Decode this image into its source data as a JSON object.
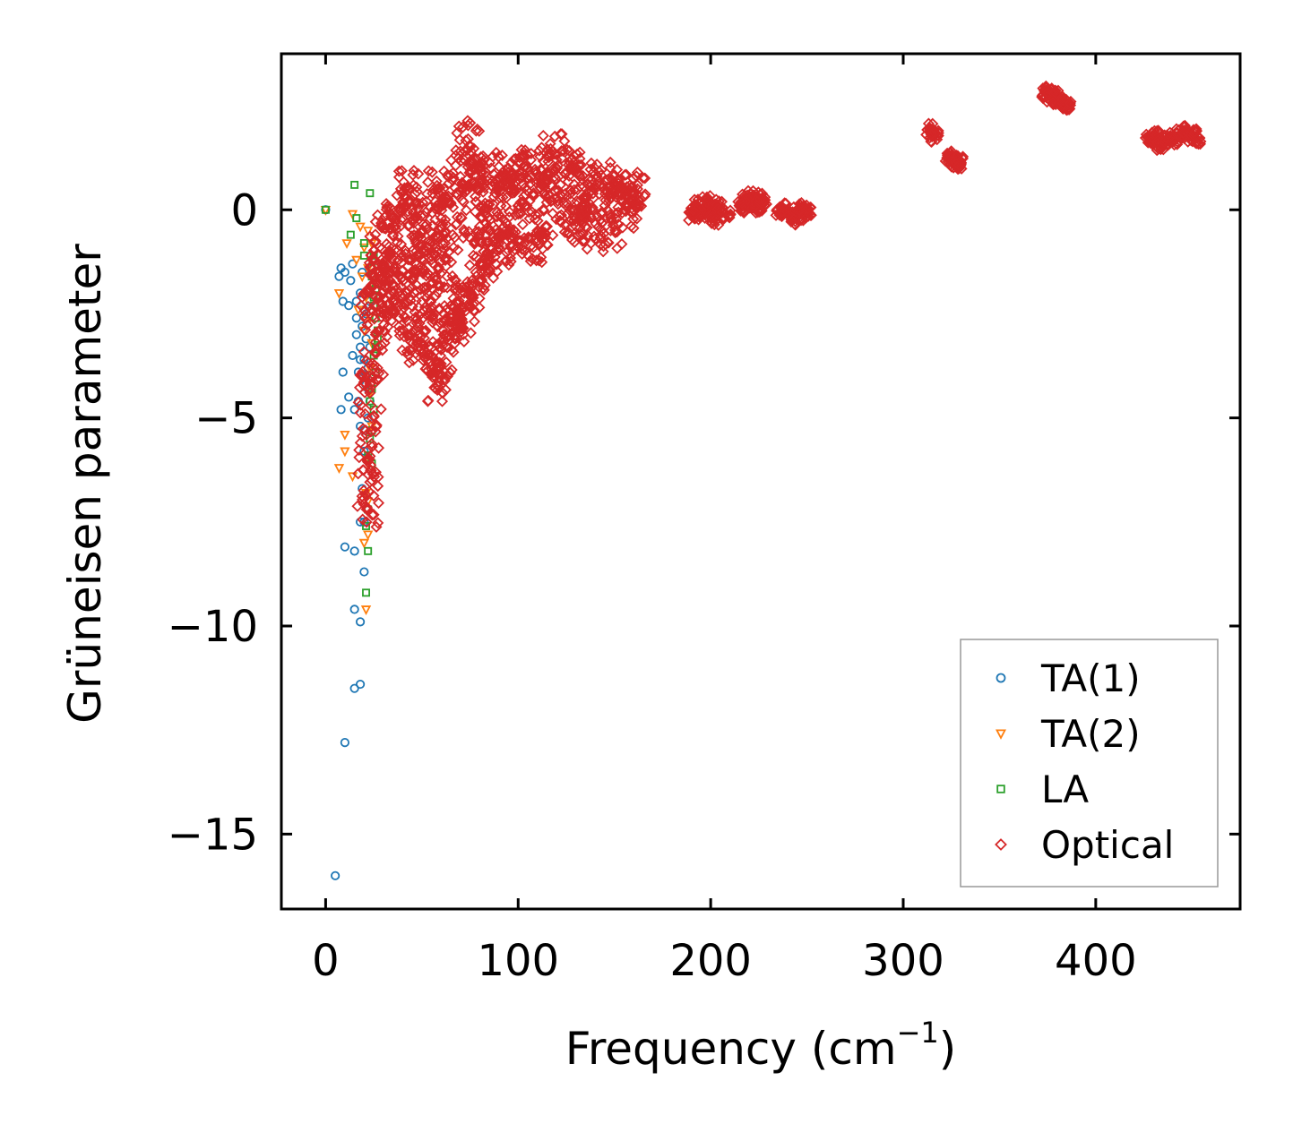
{
  "chart_data": {
    "type": "scatter",
    "xlabel": "Frequency (cm",
    "xlabel_sup": "−1",
    "xlabel_close": ")",
    "ylabel": "Grüneisen parameter",
    "xlim": [
      -23,
      475
    ],
    "ylim": [
      -16.8,
      3.75
    ],
    "xticks": [
      0,
      100,
      200,
      300,
      400
    ],
    "xtick_labels": [
      "0",
      "100",
      "200",
      "300",
      "400"
    ],
    "yticks": [
      0,
      -5,
      -10,
      -15
    ],
    "ytick_labels": [
      "0",
      "−5",
      "−10",
      "−15"
    ],
    "legend_position": "lower-right",
    "series": [
      {
        "name": "TA(1)",
        "marker": "circle",
        "color": "#1f77b4",
        "points": [
          [
            0,
            0
          ],
          [
            5,
            -16
          ],
          [
            10,
            -12.8
          ],
          [
            15,
            -11.5
          ],
          [
            18,
            -11.4
          ],
          [
            15,
            -9.6
          ],
          [
            18,
            -9.9
          ],
          [
            10,
            -8.1
          ],
          [
            15,
            -8.2
          ],
          [
            20,
            -8.7
          ],
          [
            18,
            -7.5
          ],
          [
            20,
            -7.5
          ],
          [
            19,
            -6.7
          ],
          [
            8,
            -4.8
          ],
          [
            15,
            -4.8
          ],
          [
            18,
            -5.2
          ],
          [
            20,
            -5.8
          ],
          [
            9,
            -3.9
          ],
          [
            12,
            -4.5
          ],
          [
            14,
            -3.5
          ],
          [
            16,
            -3.0
          ],
          [
            18,
            -3.3
          ],
          [
            20,
            -3.6
          ],
          [
            21,
            -4.0
          ],
          [
            22,
            -4.3
          ],
          [
            23,
            -4.6
          ],
          [
            17,
            -4.6
          ],
          [
            19,
            -2.8
          ],
          [
            21,
            -2.5
          ],
          [
            7,
            -1.6
          ],
          [
            8,
            -1.4
          ],
          [
            9,
            -2.2
          ],
          [
            10,
            -1.5
          ],
          [
            12,
            -2.3
          ],
          [
            13,
            -1.7
          ],
          [
            14,
            -1.3
          ],
          [
            16,
            -2.2
          ],
          [
            18,
            -2.0
          ],
          [
            19,
            -1.5
          ],
          [
            20,
            -2.4
          ],
          [
            21,
            -3.1
          ],
          [
            22,
            -3.8
          ],
          [
            23,
            -2.2
          ],
          [
            17,
            -3.9
          ],
          [
            16,
            -2.6
          ],
          [
            20,
            -5.3
          ],
          [
            22,
            -5.0
          ],
          [
            21,
            -4.2
          ],
          [
            23,
            -3.3
          ],
          [
            18,
            -3.6
          ]
        ]
      },
      {
        "name": "TA(2)",
        "marker": "triangle-down",
        "color": "#ff7f0e",
        "points": [
          [
            0,
            0
          ],
          [
            7,
            -6.2
          ],
          [
            10,
            -5.8
          ],
          [
            10,
            -5.4
          ],
          [
            14,
            -6.4
          ],
          [
            20,
            -8.0
          ],
          [
            21,
            -9.6
          ],
          [
            22,
            -7.8
          ],
          [
            22,
            -7.0
          ],
          [
            7,
            -2.0
          ],
          [
            11,
            -0.8
          ],
          [
            14,
            -0.1
          ],
          [
            18,
            -0.4
          ],
          [
            20,
            -0.9
          ],
          [
            22,
            -0.5
          ],
          [
            24,
            -0.8
          ],
          [
            16,
            -1.2
          ],
          [
            19,
            -1.6
          ],
          [
            21,
            -2.1
          ],
          [
            23,
            -2.6
          ],
          [
            24,
            -3.2
          ],
          [
            22,
            -1.4
          ],
          [
            20,
            -2.9
          ],
          [
            23,
            -4.4
          ],
          [
            24,
            -5.2
          ],
          [
            22,
            -6.1
          ],
          [
            21,
            -6.8
          ],
          [
            24,
            -1.9
          ],
          [
            17,
            -2.4
          ],
          [
            23,
            -3.8
          ]
        ]
      },
      {
        "name": "LA",
        "marker": "square",
        "color": "#2ca02c",
        "points": [
          [
            0,
            0
          ],
          [
            15,
            0.6
          ],
          [
            23,
            0.4
          ],
          [
            16,
            -0.2
          ],
          [
            13,
            -0.6
          ],
          [
            20,
            -0.8
          ],
          [
            20,
            -1.1
          ],
          [
            25,
            -1.1
          ],
          [
            24,
            -1.6
          ],
          [
            25,
            -2.1
          ],
          [
            26,
            -2.6
          ],
          [
            27,
            -3.1
          ],
          [
            25,
            -3.5
          ],
          [
            26,
            -3.9
          ],
          [
            24,
            -4.3
          ],
          [
            25,
            -4.8
          ],
          [
            23,
            -5.5
          ],
          [
            22,
            -5.9
          ],
          [
            24,
            -6.1
          ],
          [
            21,
            -7.6
          ],
          [
            22,
            -8.2
          ],
          [
            21,
            -9.2
          ],
          [
            22,
            -7.2
          ],
          [
            26,
            -1.9
          ],
          [
            27,
            -2.9
          ],
          [
            24,
            -5.3
          ],
          [
            23,
            -4.6
          ],
          [
            25,
            -2.3
          ],
          [
            26,
            -3.3
          ],
          [
            24,
            -1.4
          ]
        ]
      },
      {
        "name": "Optical",
        "marker": "diamond",
        "color": "#d62728",
        "points": [
          [
            22,
            -6.0
          ],
          [
            24,
            -6.5
          ],
          [
            22,
            -7.2
          ],
          [
            24,
            -5.0
          ],
          [
            23,
            -4.4
          ],
          [
            25,
            -3.8
          ],
          [
            26,
            -3.0
          ],
          [
            24,
            -2.4
          ],
          [
            25,
            -1.8
          ],
          [
            28,
            -0.9
          ],
          [
            30,
            -1.3
          ],
          [
            32,
            -0.3
          ],
          [
            35,
            -0.6
          ],
          [
            38,
            -1.2
          ],
          [
            40,
            -0.2
          ],
          [
            42,
            0.3
          ],
          [
            44,
            0.5
          ],
          [
            45,
            0.0
          ],
          [
            47,
            -0.8
          ],
          [
            48,
            -1.5
          ],
          [
            50,
            -2.2
          ],
          [
            52,
            -2.9
          ],
          [
            54,
            -2.2
          ],
          [
            55,
            -1.2
          ],
          [
            57,
            0.2
          ],
          [
            58,
            0.5
          ],
          [
            60,
            -0.2
          ],
          [
            62,
            -0.8
          ],
          [
            63,
            -1.6
          ],
          [
            65,
            -2.3
          ],
          [
            66,
            -0.6
          ],
          [
            68,
            0.4
          ],
          [
            70,
            0.8
          ],
          [
            72,
            1.2
          ],
          [
            74,
            1.7
          ],
          [
            75,
            0.9
          ],
          [
            78,
            0.2
          ],
          [
            80,
            -0.4
          ],
          [
            82,
            -1.0
          ],
          [
            84,
            0.8
          ],
          [
            86,
            1.0
          ],
          [
            88,
            0.4
          ],
          [
            90,
            -0.3
          ],
          [
            92,
            0.3
          ],
          [
            95,
            0.9
          ],
          [
            98,
            0.5
          ],
          [
            100,
            -0.1
          ],
          [
            102,
            0.9
          ],
          [
            105,
            1.0
          ],
          [
            108,
            0.4
          ],
          [
            110,
            -0.5
          ],
          [
            112,
            0.6
          ],
          [
            115,
            0.9
          ],
          [
            118,
            1.4
          ],
          [
            120,
            1.2
          ],
          [
            122,
            0.6
          ],
          [
            125,
            0.1
          ],
          [
            128,
            -0.4
          ],
          [
            130,
            1.0
          ],
          [
            132,
            0.8
          ],
          [
            135,
            0.3
          ],
          [
            138,
            -0.2
          ],
          [
            140,
            0.5
          ],
          [
            142,
            0.7
          ],
          [
            145,
            0.1
          ],
          [
            148,
            -0.5
          ],
          [
            150,
            0.6
          ],
          [
            152,
            0.4
          ],
          [
            155,
            0.0
          ],
          [
            158,
            0.2
          ],
          [
            160,
            0.4
          ],
          [
            162,
            0.5
          ],
          [
            45,
            -3.0
          ],
          [
            48,
            -3.3
          ],
          [
            55,
            -3.5
          ],
          [
            57,
            -3.9
          ],
          [
            58,
            -4.2
          ],
          [
            60,
            -3.7
          ],
          [
            62,
            -3.0
          ],
          [
            65,
            -2.7
          ],
          [
            70,
            -2.6
          ],
          [
            75,
            -2.3
          ],
          [
            80,
            -1.7
          ],
          [
            85,
            -1.2
          ],
          [
            90,
            -0.9
          ],
          [
            95,
            -0.6
          ],
          [
            100,
            -0.9
          ],
          [
            108,
            -0.9
          ],
          [
            115,
            -0.4
          ],
          [
            130,
            -0.4
          ],
          [
            140,
            -0.7
          ],
          [
            68,
            -2.8
          ],
          [
            72,
            -2.0
          ],
          [
            78,
            -1.5
          ],
          [
            38,
            -2.6
          ],
          [
            42,
            -2.0
          ],
          [
            35,
            -2.2
          ],
          [
            32,
            -1.8
          ],
          [
            30,
            -2.5
          ],
          [
            28,
            -1.6
          ],
          [
            52,
            -1.0
          ],
          [
            50,
            -0.5
          ],
          [
            45,
            -1.7
          ],
          [
            190,
            -0.1
          ],
          [
            193,
            0.1
          ],
          [
            196,
            -0.1
          ],
          [
            198,
            0.2
          ],
          [
            200,
            0.0
          ],
          [
            202,
            -0.2
          ],
          [
            205,
            0.1
          ],
          [
            208,
            -0.1
          ],
          [
            216,
            0.1
          ],
          [
            218,
            0.2
          ],
          [
            221,
            0.3
          ],
          [
            223,
            0.2
          ],
          [
            225,
            0.1
          ],
          [
            227,
            0.25
          ],
          [
            236,
            -0.1
          ],
          [
            239,
            0.0
          ],
          [
            242,
            -0.2
          ],
          [
            245,
            -0.1
          ],
          [
            248,
            0.0
          ],
          [
            250,
            -0.1
          ],
          [
            314,
            1.9
          ],
          [
            316,
            1.8
          ],
          [
            324,
            1.3
          ],
          [
            326,
            1.2
          ],
          [
            328,
            1.1
          ],
          [
            329,
            1.15
          ],
          [
            374,
            2.8
          ],
          [
            377,
            2.75
          ],
          [
            380,
            2.7
          ],
          [
            383,
            2.6
          ],
          [
            385,
            2.55
          ],
          [
            428,
            1.7
          ],
          [
            431,
            1.75
          ],
          [
            434,
            1.6
          ],
          [
            437,
            1.65
          ],
          [
            440,
            1.7
          ],
          [
            444,
            1.8
          ],
          [
            447,
            1.85
          ],
          [
            450,
            1.8
          ],
          [
            453,
            1.75
          ]
        ]
      }
    ]
  }
}
